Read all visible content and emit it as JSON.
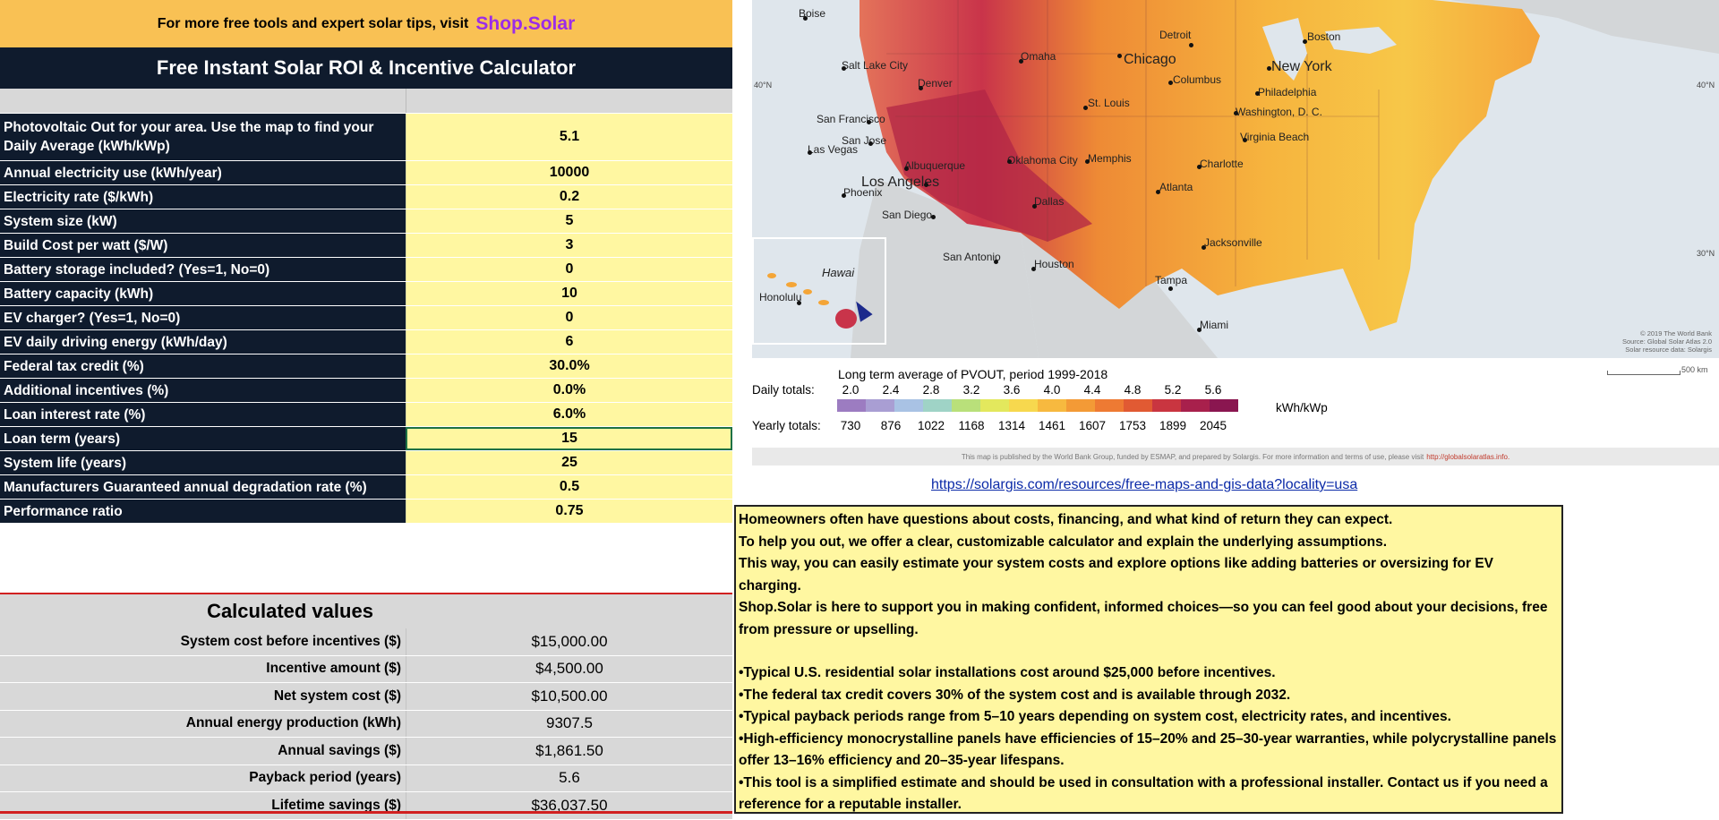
{
  "banner": {
    "text": "For more free tools and expert solar tips, visit",
    "brand": "Shop.Solar"
  },
  "title": "Free Instant Solar ROI & Incentive Calculator",
  "inputs": [
    {
      "label": "Photovoltaic Out for your area. Use the map to find your Daily Average (kWh/kWp)",
      "value": "5.1"
    },
    {
      "label": "Annual electricity use (kWh/year)",
      "value": "10000"
    },
    {
      "label": "Electricity rate ($/kWh)",
      "value": "0.2"
    },
    {
      "label": "System size (kW)",
      "value": "5"
    },
    {
      "label": "Build Cost per watt ($/W)",
      "value": "3"
    },
    {
      "label": "Battery storage included? (Yes=1, No=0)",
      "value": "0"
    },
    {
      "label": "Battery capacity (kWh)",
      "value": "10"
    },
    {
      "label": "EV charger? (Yes=1, No=0)",
      "value": "0"
    },
    {
      "label": "EV daily driving energy (kWh/day)",
      "value": "6"
    },
    {
      "label": "Federal tax credit (%)",
      "value": "30.0%"
    },
    {
      "label": "Additional incentives (%)",
      "value": "0.0%"
    },
    {
      "label": "Loan interest rate (%)",
      "value": "6.0%"
    },
    {
      "label": "Loan term (years)",
      "value": "15"
    },
    {
      "label": "System life (years)",
      "value": "25"
    },
    {
      "label": "Manufacturers Guaranteed annual degradation rate (%)",
      "value": "0.5"
    },
    {
      "label": "Performance ratio",
      "value": "0.75"
    }
  ],
  "calculated": {
    "heading": "Calculated values",
    "rows": [
      {
        "label": "System cost before incentives ($)",
        "value": "$15,000.00"
      },
      {
        "label": "Incentive amount ($)",
        "value": "$4,500.00"
      },
      {
        "label": "Net system cost ($)",
        "value": "$10,500.00"
      },
      {
        "label": "Annual energy production (kWh)",
        "value": "9307.5"
      },
      {
        "label": "Annual savings ($)",
        "value": "$1,861.50"
      },
      {
        "label": "Payback period (years)",
        "value": "5.6"
      },
      {
        "label": "Lifetime savings ($)",
        "value": "$36,037.50"
      }
    ]
  },
  "map": {
    "cities": [
      {
        "name": "Boise",
        "big": false
      },
      {
        "name": "Salt Lake City",
        "big": false
      },
      {
        "name": "Denver",
        "big": false
      },
      {
        "name": "Omaha",
        "big": false
      },
      {
        "name": "Detroit",
        "big": false
      },
      {
        "name": "Boston",
        "big": false
      },
      {
        "name": "Chicago",
        "big": true
      },
      {
        "name": "New York",
        "big": true
      },
      {
        "name": "Columbus",
        "big": false
      },
      {
        "name": "Philadelphia",
        "big": false
      },
      {
        "name": "St. Louis",
        "big": false
      },
      {
        "name": "Washington, D. C.",
        "big": false
      },
      {
        "name": "San Francisco",
        "big": false
      },
      {
        "name": "San Jose",
        "big": false
      },
      {
        "name": "Virginia Beach",
        "big": false
      },
      {
        "name": "Las Vegas",
        "big": false
      },
      {
        "name": "Oklahoma City",
        "big": false
      },
      {
        "name": "Albuquerque",
        "big": false
      },
      {
        "name": "Memphis",
        "big": false
      },
      {
        "name": "Charlotte",
        "big": false
      },
      {
        "name": "Los Angeles",
        "big": true
      },
      {
        "name": "Phoenix",
        "big": false
      },
      {
        "name": "Atlanta",
        "big": false
      },
      {
        "name": "Dallas",
        "big": false
      },
      {
        "name": "San Diego",
        "big": false
      },
      {
        "name": "Jacksonville",
        "big": false
      },
      {
        "name": "San Antonio",
        "big": false
      },
      {
        "name": "Houston",
        "big": false
      },
      {
        "name": "Tampa",
        "big": false
      },
      {
        "name": "Honolulu",
        "big": false
      },
      {
        "name": "Miami",
        "big": false
      }
    ],
    "hawaii_label": "Hawai",
    "lat_labels": [
      "40°N",
      "40°N",
      "30°N"
    ],
    "credit": [
      "© 2019 The World Bank",
      "Source: Global Solar Atlas 2.0",
      "Solar resource data: Solargis"
    ],
    "scalebar_label": "500 km"
  },
  "legend": {
    "title": "Long term average of PVOUT, period 1999-2018",
    "daily_label": "Daily totals:",
    "yearly_label": "Yearly totals:",
    "daily_ticks": [
      "2.0",
      "2.4",
      "2.8",
      "3.2",
      "3.6",
      "4.0",
      "4.4",
      "4.8",
      "5.2",
      "5.6"
    ],
    "yearly_ticks": [
      "730",
      "876",
      "1022",
      "1168",
      "1314",
      "1461",
      "1607",
      "1753",
      "1899",
      "2045"
    ],
    "unit": "kWh/kWp",
    "colors": [
      "#9c7cc1",
      "#a99ed3",
      "#a9c2e4",
      "#9fd3c6",
      "#b9e07a",
      "#e3e85d",
      "#f7d84e",
      "#f7b93f",
      "#f39a36",
      "#ee7a33",
      "#e15a33",
      "#c93540",
      "#a8204c",
      "#8a1650"
    ],
    "note": "This map is published by the World Bank Group, funded by ESMAP, and prepared by Solargis. For more information and terms of use, please visit",
    "note_link": "http://globalsolaratlas.info."
  },
  "link": "https://solargis.com/resources/free-maps-and-gis-data?locality=usa",
  "info": [
    "Homeowners often have questions about costs, financing, and what kind of return they can expect.",
    "To help you out, we offer a clear, customizable calculator and explain the underlying assumptions.",
    "This way, you can easily estimate your system costs and explore options like adding batteries or oversizing for EV charging.",
    "Shop.Solar is here to support you in making confident, informed choices—so you can feel good about your decisions, free from pressure or upselling.",
    "",
    "•Typical U.S. residential solar installations cost around $25,000 before incentives.",
    "•The federal tax credit covers 30% of the system cost and is available through 2032.",
    "•Typical payback periods range from 5–10 years depending on system cost, electricity rates, and incentives.",
    "•High-efficiency monocrystalline panels have efficiencies of 15–20% and 25–30-year warranties, while polycrystalline panels offer 13–16% efficiency and 20–35-year lifespans.",
    "•This tool is a simplified estimate and should be used in consultation with a professional installer. Contact us if you need a reference for a reputable installer."
  ]
}
